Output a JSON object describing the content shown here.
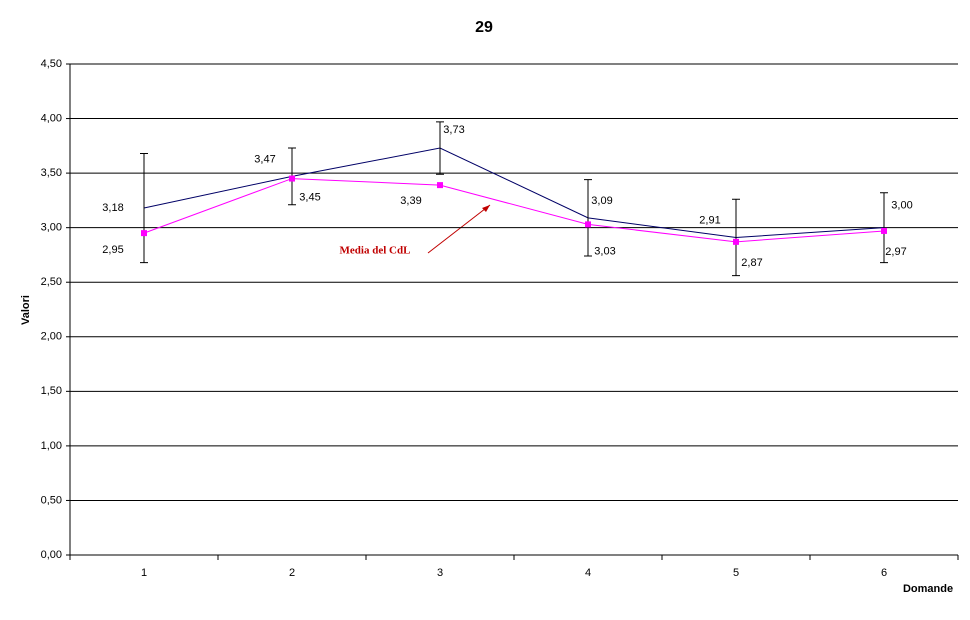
{
  "chart_data": {
    "type": "line",
    "title": "29",
    "x_label": "Domande",
    "y_label": "Valori",
    "categories": [
      "1",
      "2",
      "3",
      "4",
      "5",
      "6"
    ],
    "series": [
      {
        "color": "#000066",
        "values": [
          3.18,
          3.47,
          3.73,
          3.09,
          2.91,
          3.0
        ],
        "value_labels": [
          "3,18",
          "3,47",
          "3,73",
          "3,09",
          "2,91",
          "3,00"
        ],
        "errors": [
          0.5,
          0.26,
          0.24,
          0.35,
          0.35,
          0.32
        ]
      },
      {
        "color": "#ff00ff",
        "values": [
          2.95,
          3.45,
          3.39,
          3.03,
          2.87,
          2.97
        ],
        "value_labels": [
          "2,95",
          "3,45",
          "3,39",
          "3,03",
          "2,87",
          "2,97"
        ]
      }
    ],
    "annotation": "Media del CdL",
    "ylim": [
      0,
      4.5
    ],
    "yticks": [
      {
        "value": 0,
        "label": "0,00"
      },
      {
        "value": 0.5,
        "label": "0,50"
      },
      {
        "value": 1,
        "label": "1,00"
      },
      {
        "value": 1.5,
        "label": "1,50"
      },
      {
        "value": 2,
        "label": "2,00"
      },
      {
        "value": 2.5,
        "label": "2,50"
      },
      {
        "value": 3,
        "label": "3,00"
      },
      {
        "value": 3.5,
        "label": "3,50"
      },
      {
        "value": 4,
        "label": "4,00"
      },
      {
        "value": 4.5,
        "label": "4,50"
      }
    ],
    "grid": true
  }
}
